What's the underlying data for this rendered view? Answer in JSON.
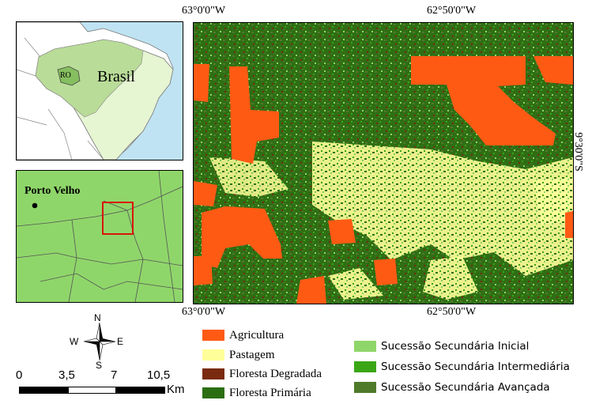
{
  "inset_top": {
    "country_label": "Brasil",
    "state_label": "RO"
  },
  "inset_bottom": {
    "city_label": "Porto Velho"
  },
  "coordinates": {
    "top_left": "63°0'0\"W",
    "top_right": "62°50'0\"W",
    "bottom_left": "63°0'0\"W",
    "bottom_right": "62°50'0\"W",
    "right_lat": "9°30'0\"S"
  },
  "compass": {
    "n": "N",
    "s": "S",
    "e": "E",
    "w": "W"
  },
  "scale_bar": {
    "ticks": [
      "0",
      "3,5",
      "7",
      "10,5"
    ],
    "unit": "Km"
  },
  "legend": [
    {
      "label": "Agricultura",
      "color": "#ff5a14"
    },
    {
      "label": "Pastagem",
      "color": "#ffff99"
    },
    {
      "label": "Floresta Degradada",
      "color": "#7a2a0e"
    },
    {
      "label": "Floresta Primária",
      "color": "#2b6e12"
    },
    {
      "label": "Sucessão Secundária Inicial",
      "color": "#8fd66a"
    },
    {
      "label": "Sucessão Secundária Intermediária",
      "color": "#3aa616"
    },
    {
      "label": "Sucessão Secundária Avançada",
      "color": "#4f7a2a"
    }
  ]
}
